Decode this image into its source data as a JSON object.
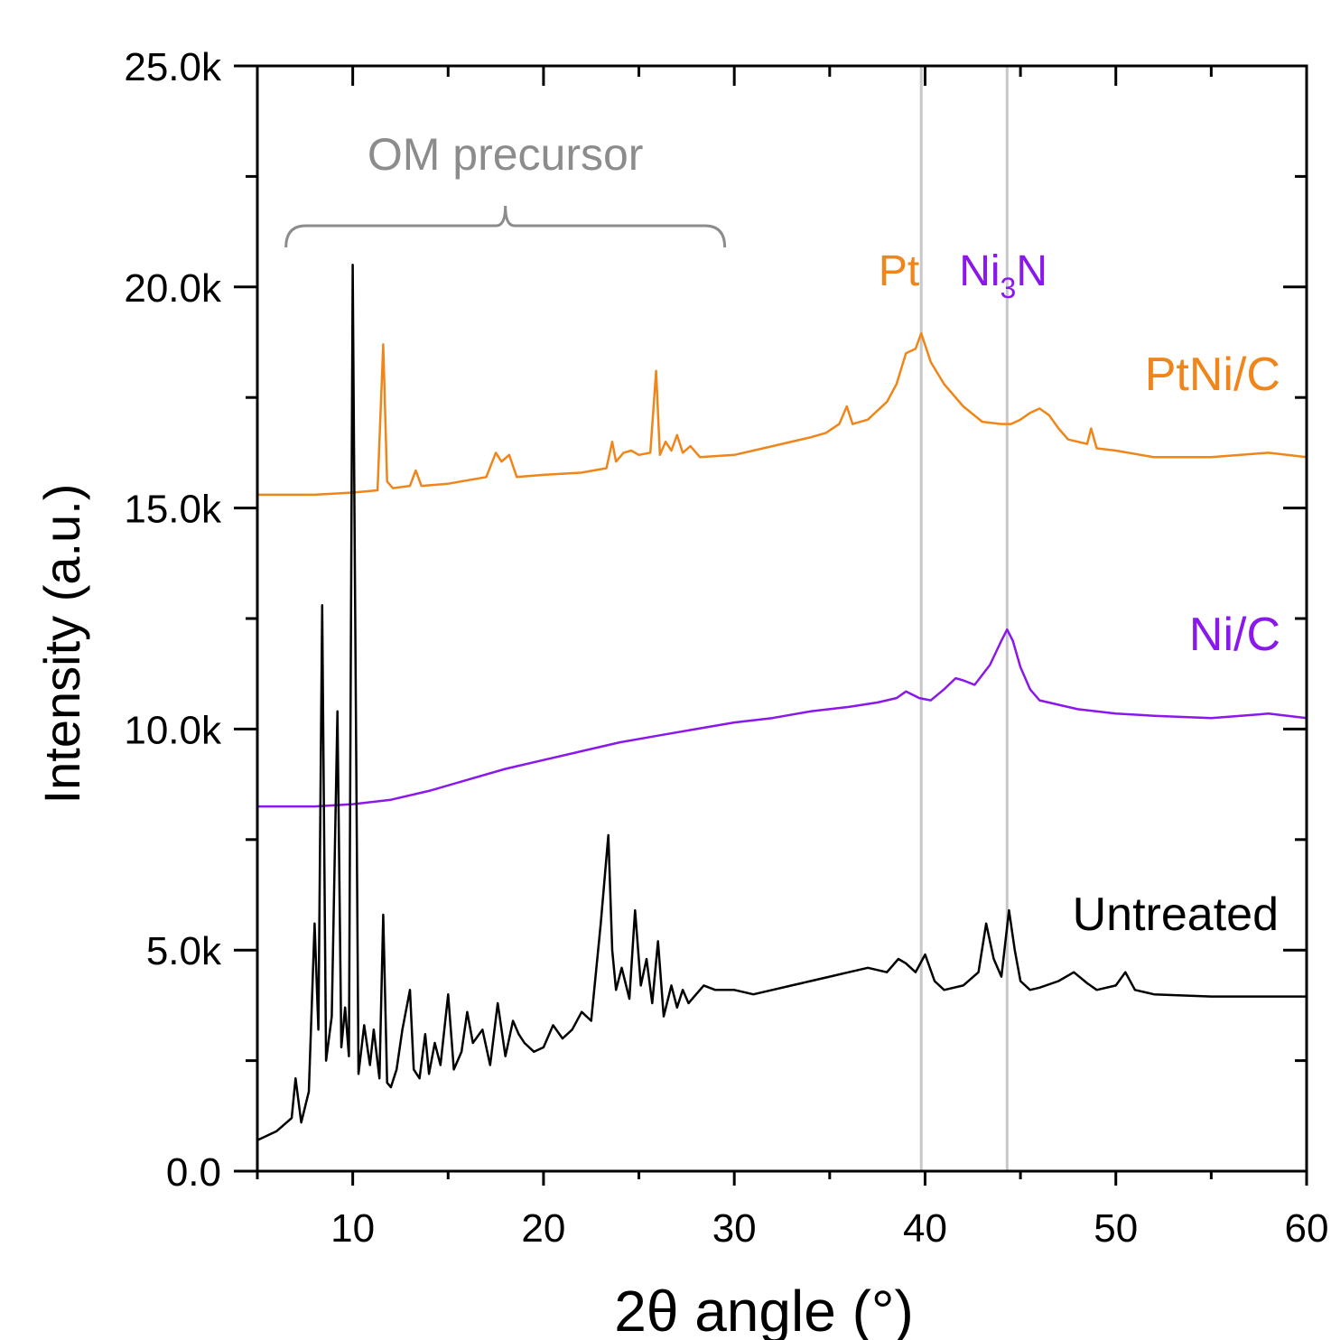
{
  "chart_data": {
    "type": "line",
    "title": "",
    "xlabel": "2θ angle (°)",
    "ylabel": "Intensity (a.u.)",
    "xlim": [
      5,
      60
    ],
    "ylim": [
      0,
      25000
    ],
    "xticks": [
      10,
      20,
      30,
      40,
      50,
      60
    ],
    "xtick_labels": [
      "10",
      "20",
      "30",
      "40",
      "50",
      "60"
    ],
    "yticks": [
      0,
      5000,
      10000,
      15000,
      20000,
      25000
    ],
    "ytick_labels": [
      "0.0",
      "5.0k",
      "10.0k",
      "15.0k",
      "20.0k",
      "25.0k"
    ],
    "grid": false,
    "series": [
      {
        "name": "PtNi/C",
        "color": "#F08519",
        "x": [
          5,
          8,
          10,
          11.3,
          11.6,
          11.8,
          12.1,
          13.0,
          13.3,
          13.6,
          15,
          17.0,
          17.5,
          17.8,
          18.2,
          18.6,
          20,
          22,
          23.3,
          23.6,
          23.8,
          24.2,
          24.6,
          25.0,
          25.6,
          25.9,
          26.1,
          26.4,
          26.7,
          27.0,
          27.3,
          27.7,
          28.2,
          30,
          32,
          34,
          34.8,
          35.5,
          35.9,
          36.2,
          37,
          38,
          38.5,
          39.0,
          39.5,
          39.8,
          40.3,
          41,
          42,
          43,
          44,
          44.5,
          45.0,
          45.5,
          46.0,
          46.5,
          47.0,
          47.5,
          48.0,
          48.5,
          48.7,
          49.0,
          50,
          52,
          55,
          58,
          60
        ],
        "values": [
          15300,
          15300,
          15350,
          15400,
          18700,
          15600,
          15450,
          15500,
          15850,
          15500,
          15550,
          15700,
          16250,
          16050,
          16200,
          15700,
          15750,
          15800,
          15900,
          16500,
          16050,
          16250,
          16300,
          16200,
          16250,
          18100,
          16200,
          16500,
          16300,
          16650,
          16250,
          16400,
          16150,
          16200,
          16400,
          16600,
          16700,
          16900,
          17300,
          16900,
          17000,
          17400,
          17800,
          18500,
          18600,
          18950,
          18300,
          17800,
          17300,
          16950,
          16900,
          16900,
          17000,
          17150,
          17250,
          17100,
          16800,
          16550,
          16500,
          16450,
          16800,
          16350,
          16300,
          16150,
          16150,
          16250,
          16150
        ]
      },
      {
        "name": "Ni/C",
        "color": "#8A17EB",
        "x": [
          5,
          8,
          10,
          12,
          14,
          16,
          18,
          20,
          22,
          24,
          26,
          28,
          30,
          32,
          34,
          36,
          37.5,
          38.5,
          39.0,
          39.7,
          40.3,
          41.0,
          41.6,
          42.0,
          42.6,
          43.4,
          44.0,
          44.3,
          44.6,
          45.0,
          45.5,
          46.0,
          47,
          48,
          50,
          52,
          55,
          58,
          60
        ],
        "values": [
          8250,
          8250,
          8300,
          8400,
          8600,
          8850,
          9100,
          9300,
          9500,
          9700,
          9850,
          10000,
          10150,
          10250,
          10400,
          10500,
          10600,
          10700,
          10850,
          10700,
          10650,
          10900,
          11150,
          11100,
          11000,
          11450,
          12000,
          12250,
          12000,
          11400,
          10900,
          10650,
          10550,
          10450,
          10350,
          10300,
          10250,
          10350,
          10250
        ]
      },
      {
        "name": "Untreated",
        "color": "#000000",
        "x": [
          5,
          6,
          6.8,
          7.0,
          7.3,
          7.7,
          8.0,
          8.2,
          8.4,
          8.6,
          8.9,
          9.2,
          9.4,
          9.6,
          9.8,
          10.0,
          10.3,
          10.6,
          10.9,
          11.1,
          11.4,
          11.6,
          11.8,
          12.0,
          12.3,
          12.6,
          13.0,
          13.2,
          13.5,
          13.8,
          14.0,
          14.3,
          14.6,
          15.0,
          15.3,
          15.7,
          16.0,
          16.3,
          16.8,
          17.2,
          17.6,
          18.0,
          18.4,
          18.7,
          19.0,
          19.5,
          20.0,
          20.5,
          21.0,
          21.5,
          22.0,
          22.5,
          23.0,
          23.4,
          23.6,
          23.8,
          24.1,
          24.5,
          24.8,
          25.1,
          25.4,
          25.7,
          26.0,
          26.3,
          26.7,
          27.0,
          27.3,
          27.6,
          28.0,
          28.4,
          29,
          30,
          31,
          32,
          33,
          34,
          35,
          36,
          37,
          38,
          38.6,
          39.0,
          39.5,
          40.0,
          40.5,
          41.0,
          42.0,
          42.8,
          43.2,
          43.6,
          44.0,
          44.4,
          44.7,
          45.0,
          45.5,
          46,
          47,
          47.8,
          48.5,
          49,
          50,
          50.5,
          51,
          52,
          55,
          58,
          60
        ],
        "values": [
          700,
          900,
          1200,
          2100,
          1100,
          1800,
          5600,
          3200,
          12800,
          2500,
          3500,
          10400,
          2800,
          3700,
          2600,
          20500,
          2200,
          3300,
          2400,
          3200,
          2100,
          5800,
          2000,
          1900,
          2300,
          3200,
          4100,
          2300,
          2100,
          3100,
          2200,
          2900,
          2400,
          4000,
          2300,
          2700,
          3600,
          2900,
          3200,
          2400,
          3800,
          2600,
          3400,
          3100,
          2900,
          2700,
          2800,
          3300,
          3000,
          3200,
          3600,
          3400,
          5600,
          7600,
          5000,
          4100,
          4600,
          3900,
          5900,
          4200,
          4800,
          3800,
          5200,
          3500,
          4200,
          3700,
          4100,
          3800,
          4000,
          4200,
          4100,
          4100,
          4000,
          4100,
          4200,
          4300,
          4400,
          4500,
          4600,
          4500,
          4800,
          4700,
          4500,
          4900,
          4300,
          4100,
          4200,
          4500,
          5600,
          4800,
          4400,
          5900,
          5000,
          4300,
          4100,
          4150,
          4300,
          4500,
          4250,
          4100,
          4200,
          4500,
          4100,
          4000,
          3950,
          3950,
          3950
        ]
      }
    ],
    "annotations": {
      "bracket_label": "OM precursor",
      "bracket_range": [
        6.5,
        29.5
      ],
      "reference_lines": [
        {
          "label": "Pt",
          "x": 39.8,
          "color": "#F08519"
        },
        {
          "label_main": "Ni",
          "label_sub": "3",
          "label_end": "N",
          "x": 44.3,
          "color": "#8A17EB"
        }
      ],
      "series_labels": [
        "PtNi/C",
        "Ni/C",
        "Untreated"
      ]
    }
  }
}
